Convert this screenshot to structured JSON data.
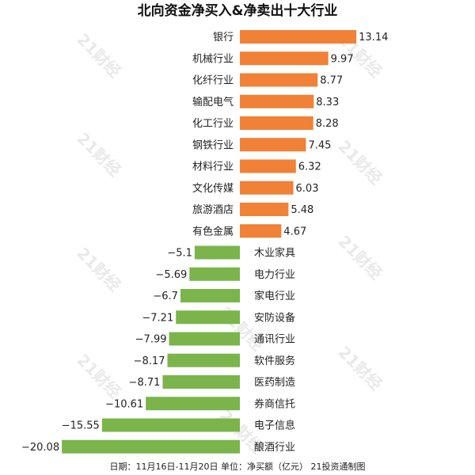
{
  "colors": {
    "positive": "#f08137",
    "negative": "#7bb44b"
  },
  "watermark": "21财经",
  "chart_data": {
    "type": "bar",
    "orientation": "horizontal",
    "title": "北向资金净买入&净卖出十大行业",
    "footnote": "日期：11月16日-11月20日 单位：净买额（亿元） 21投资通制图",
    "categories": [
      "银行",
      "机械行业",
      "化纤行业",
      "输配电气",
      "化工行业",
      "钢铁行业",
      "材料行业",
      "文化传媒",
      "旅游酒店",
      "有色金属",
      "木业家具",
      "电力行业",
      "家电行业",
      "安防设备",
      "通讯行业",
      "软件服务",
      "医药制造",
      "券商信托",
      "电子信息",
      "酿酒行业"
    ],
    "values": [
      13.14,
      9.97,
      8.77,
      8.33,
      8.28,
      7.45,
      6.32,
      6.03,
      5.48,
      4.67,
      -5.1,
      -5.69,
      -6.7,
      -7.21,
      -7.99,
      -8.17,
      -8.71,
      -10.61,
      -15.55,
      -20.08
    ],
    "value_labels": [
      "13.14",
      "9.97",
      "8.77",
      "8.33",
      "8.28",
      "7.45",
      "6.32",
      "6.03",
      "5.48",
      "4.67",
      "−5.1",
      "−5.69",
      "−6.7",
      "−7.21",
      "−7.99",
      "−8.17",
      "−8.71",
      "−10.61",
      "−15.55",
      "−20.08"
    ],
    "grid": false,
    "legend": "none"
  }
}
